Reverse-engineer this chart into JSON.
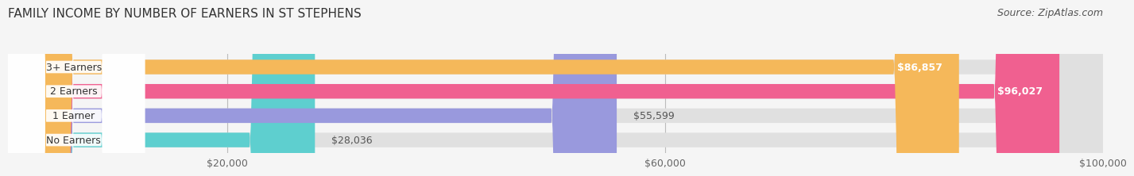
{
  "title": "FAMILY INCOME BY NUMBER OF EARNERS IN ST STEPHENS",
  "source": "Source: ZipAtlas.com",
  "categories": [
    "No Earners",
    "1 Earner",
    "2 Earners",
    "3+ Earners"
  ],
  "values": [
    28036,
    55599,
    96027,
    86857
  ],
  "bar_colors": [
    "#5ECFCF",
    "#9999DD",
    "#F06090",
    "#F5B85A"
  ],
  "value_labels": [
    "$28,036",
    "$55,599",
    "$96,027",
    "$86,857"
  ],
  "value_inside": [
    false,
    false,
    true,
    true
  ],
  "xlim": [
    0,
    100000
  ],
  "xticks": [
    20000,
    60000,
    100000
  ],
  "xtick_labels": [
    "$20,000",
    "$60,000",
    "$100,000"
  ],
  "background_color": "#f5f5f5",
  "bar_background_color": "#e0e0e0",
  "title_fontsize": 11,
  "source_fontsize": 9,
  "label_fontsize": 9,
  "value_fontsize": 9,
  "tick_fontsize": 9
}
